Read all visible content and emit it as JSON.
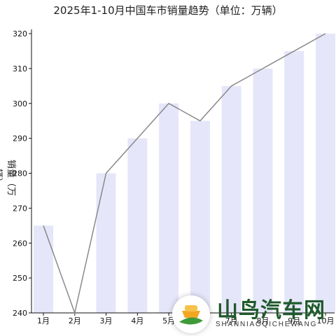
{
  "chart_data": {
    "type": "bar",
    "title": "2025年1-10月中国车市销量趋势（单位：万辆）",
    "ylabel": "销量（万辆）",
    "categories": [
      "1月",
      "2月",
      "3月",
      "4月",
      "5月",
      "6月",
      "7月",
      "8月",
      "9月",
      "10月"
    ],
    "values": [
      265,
      240,
      280,
      290,
      300,
      295,
      305,
      310,
      315,
      320
    ],
    "ylim": [
      240,
      320
    ],
    "yticks": [
      240,
      250,
      260,
      270,
      280,
      290,
      300,
      310,
      320
    ],
    "overlay": "line",
    "grid": false,
    "colors": {
      "bar": "#e6e6fa",
      "line": "#8a8a8a"
    }
  },
  "watermark": {
    "main": "山鸟汽车网",
    "sub": "SHANNIAOQICHEWANG"
  }
}
